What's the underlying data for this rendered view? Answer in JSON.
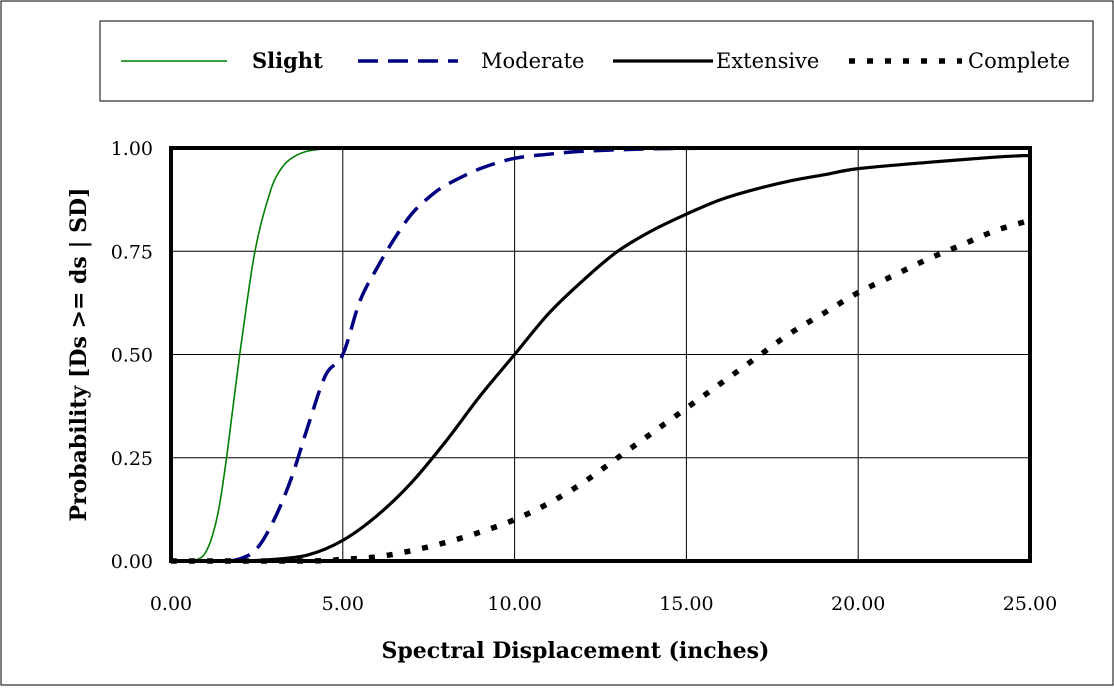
{
  "chart_data": {
    "type": "line",
    "title": "",
    "xlabel": "Spectral Displacement  (inches)",
    "ylabel": "Probability [Ds >= ds | SD]",
    "xlim": [
      0,
      25
    ],
    "ylim": [
      0,
      1
    ],
    "x_ticks": [
      "0.00",
      "5.00",
      "10.00",
      "15.00",
      "20.00",
      "25.00"
    ],
    "y_ticks": [
      "0.00",
      "0.25",
      "0.50",
      "0.75",
      "1.00"
    ],
    "grid": true,
    "legend_position": "top",
    "series": [
      {
        "name": "Slight",
        "color": "#008000",
        "style": "solid-thin",
        "x": [
          0,
          0.5,
          0.8,
          1.0,
          1.2,
          1.4,
          1.6,
          1.8,
          2.0,
          2.2,
          2.4,
          2.6,
          2.8,
          3.0,
          3.3,
          3.6,
          4.0,
          4.5,
          5.0,
          7.0,
          10.0,
          15.0,
          20.0,
          25.0
        ],
        "y": [
          0.0,
          0.0,
          0.005,
          0.02,
          0.06,
          0.13,
          0.24,
          0.37,
          0.5,
          0.62,
          0.73,
          0.81,
          0.87,
          0.92,
          0.96,
          0.98,
          0.993,
          0.998,
          1.0,
          1.0,
          1.0,
          1.0,
          1.0,
          1.0
        ]
      },
      {
        "name": "Moderate",
        "color": "#000080",
        "style": "dashed",
        "x": [
          0,
          1.5,
          2.0,
          2.5,
          3.0,
          3.5,
          4.0,
          4.5,
          5.0,
          5.5,
          6.0,
          6.5,
          7.0,
          7.5,
          8.0,
          9.0,
          10.0,
          11.0,
          12.0,
          14.0,
          17.0,
          20.0,
          25.0
        ],
        "y": [
          0.0,
          0.0,
          0.005,
          0.03,
          0.1,
          0.2,
          0.33,
          0.45,
          0.5,
          0.63,
          0.71,
          0.78,
          0.84,
          0.88,
          0.91,
          0.95,
          0.975,
          0.985,
          0.992,
          0.998,
          1.0,
          1.0,
          1.0
        ]
      },
      {
        "name": "Extensive",
        "color": "#000000",
        "style": "solid-thick",
        "x": [
          0,
          2.0,
          3.0,
          4.0,
          5.0,
          6.0,
          7.0,
          8.0,
          9.0,
          10.0,
          11.0,
          12.0,
          13.0,
          14.0,
          15.0,
          16.0,
          17.0,
          18.0,
          19.0,
          20.0,
          22.0,
          24.0,
          25.0
        ],
        "y": [
          0.0,
          0.0,
          0.004,
          0.015,
          0.05,
          0.11,
          0.19,
          0.29,
          0.4,
          0.5,
          0.6,
          0.68,
          0.75,
          0.8,
          0.84,
          0.875,
          0.9,
          0.92,
          0.935,
          0.95,
          0.965,
          0.978,
          0.982
        ]
      },
      {
        "name": "Complete",
        "color": "#000000",
        "style": "dotted-thick",
        "x": [
          0,
          4.0,
          5.0,
          6.0,
          7.0,
          8.0,
          9.0,
          10.0,
          11.0,
          12.0,
          13.0,
          14.0,
          15.0,
          16.0,
          17.0,
          18.0,
          19.0,
          20.0,
          21.0,
          22.0,
          23.0,
          24.0,
          25.0
        ],
        "y": [
          0.0,
          0.0,
          0.004,
          0.01,
          0.025,
          0.045,
          0.07,
          0.1,
          0.14,
          0.19,
          0.25,
          0.31,
          0.37,
          0.43,
          0.49,
          0.55,
          0.6,
          0.65,
          0.69,
          0.73,
          0.765,
          0.8,
          0.825
        ]
      }
    ]
  }
}
